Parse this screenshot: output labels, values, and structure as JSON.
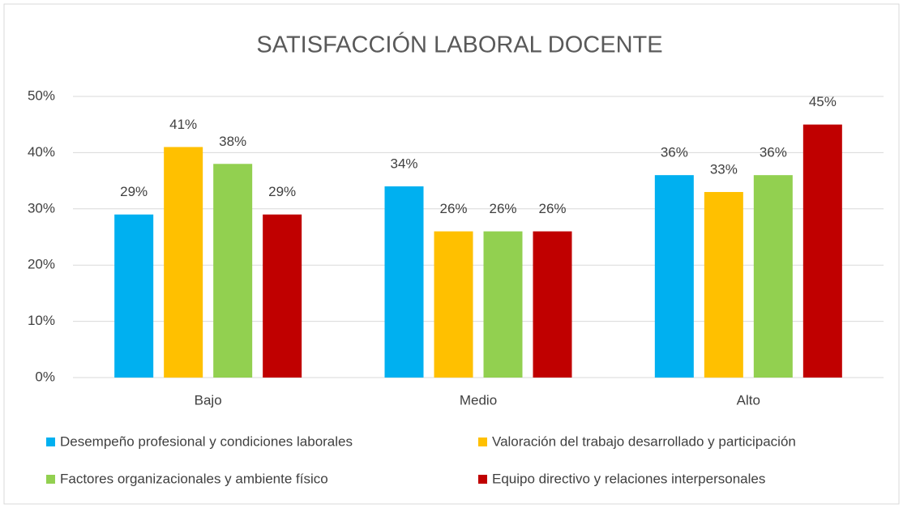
{
  "chart_data": {
    "type": "bar",
    "title": "SATISFACCIÓN LABORAL DOCENTE",
    "categories": [
      "Bajo",
      "Medio",
      "Alto"
    ],
    "series": [
      {
        "name": "Desempeño profesional y condiciones laborales",
        "color": "#00b0f0",
        "values": [
          29,
          34,
          36
        ],
        "value_labels": [
          "29%",
          "34%",
          "36%"
        ]
      },
      {
        "name": "Valoración del trabajo desarrollado y participación",
        "color": "#ffc000",
        "values": [
          41,
          26,
          33
        ],
        "value_labels": [
          "41%",
          "26%",
          "33%"
        ]
      },
      {
        "name": "Factores organizacionales y ambiente físico",
        "color": "#92d050",
        "values": [
          38,
          26,
          36
        ],
        "value_labels": [
          "38%",
          "26%",
          "36%"
        ]
      },
      {
        "name": "Equipo directivo y relaciones interpersonales",
        "color": "#c00000",
        "values": [
          29,
          26,
          45
        ],
        "value_labels": [
          "29%",
          "26%",
          "45%"
        ]
      }
    ],
    "ylim": [
      0,
      50
    ],
    "yticks": [
      {
        "value": 0,
        "label": "0%"
      },
      {
        "value": 10,
        "label": "10%"
      },
      {
        "value": 20,
        "label": "20%"
      },
      {
        "value": 30,
        "label": "30%"
      },
      {
        "value": 40,
        "label": "40%"
      },
      {
        "value": 50,
        "label": "50%"
      }
    ],
    "grid": true,
    "legend": "bottom"
  }
}
